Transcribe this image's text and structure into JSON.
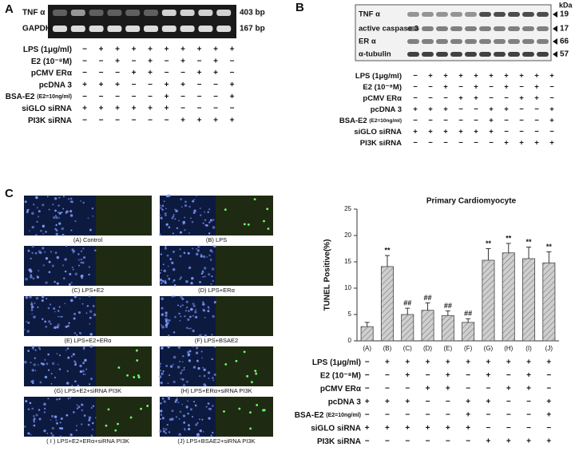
{
  "panel_a": {
    "label": "A",
    "rows": [
      {
        "name": "TNF α",
        "size": "403 bp"
      },
      {
        "name": "GAPDH",
        "size": "167 bp"
      }
    ]
  },
  "panel_b": {
    "label": "B",
    "unit": "kDa",
    "rows": [
      {
        "name": "TNF α",
        "size": 19
      },
      {
        "name": "active caspase 3",
        "size": 17
      },
      {
        "name": "ER α",
        "size": 66
      },
      {
        "name": "α-tubulin",
        "size": 57
      }
    ]
  },
  "treatments": {
    "rows": [
      {
        "name": "LPS (1μg/ml)",
        "signs": [
          "−",
          "+",
          "+",
          "+",
          "+",
          "+",
          "+",
          "+",
          "+",
          "+"
        ]
      },
      {
        "name": "E2 (10⁻⁸M)",
        "signs": [
          "−",
          "−",
          "+",
          "−",
          "+",
          "−",
          "+",
          "−",
          "+",
          "−"
        ]
      },
      {
        "name": "pCMV ERα",
        "signs": [
          "−",
          "−",
          "−",
          "+",
          "+",
          "−",
          "−",
          "+",
          "+",
          "−"
        ]
      },
      {
        "name": "pcDNA 3",
        "signs": [
          "+",
          "+",
          "+",
          "−",
          "−",
          "+",
          "+",
          "−",
          "−",
          "+"
        ]
      },
      {
        "name": "BSA-E2",
        "note": "(E2=10ng/ml)",
        "signs": [
          "−",
          "−",
          "−",
          "−",
          "−",
          "+",
          "−",
          "−",
          "−",
          "+"
        ]
      },
      {
        "name": "siGLO siRNA",
        "signs": [
          "+",
          "+",
          "+",
          "+",
          "+",
          "+",
          "−",
          "−",
          "−",
          "−"
        ]
      },
      {
        "name": "PI3K siRNA",
        "signs": [
          "−",
          "−",
          "−",
          "−",
          "−",
          "−",
          "+",
          "+",
          "+",
          "+"
        ]
      }
    ]
  },
  "panel_c": {
    "label": "C",
    "images": [
      "(A) Control",
      "(B) LPS",
      "(C) LPS+E2",
      "(D) LPS+ERα",
      "(E) LPS+E2+ERα",
      "(F) LPS+BSAE2",
      "(G) LPS+E2+siRNA PI3K",
      "(H) LPS+ERα+siRNA PI3K",
      "( I ) LPS+E2+ERα+siRNA PI3K",
      "(J) LPS+BSAE2+siRNA PI3K"
    ]
  },
  "chart_data": {
    "type": "bar",
    "title": "Primary Cardiomyocyte",
    "y_label": "TUNEL Positive(%)",
    "categories": [
      "(A)",
      "(B)",
      "(C)",
      "(D)",
      "(E)",
      "(F)",
      "(G)",
      "(H)",
      "(I)",
      "(J)"
    ],
    "values": [
      2.7,
      14.1,
      5.0,
      5.8,
      4.8,
      3.5,
      15.3,
      16.7,
      15.6,
      14.8
    ],
    "errors": [
      0.8,
      2.1,
      1.2,
      1.4,
      0.9,
      0.7,
      2.2,
      1.8,
      2.2,
      2.1
    ],
    "annotations": [
      null,
      "**",
      "##",
      "##",
      "##",
      "##",
      "**",
      "**",
      "**",
      "**"
    ],
    "color": "#c8c8c8",
    "ylim": [
      0,
      25
    ],
    "yticks": [
      0,
      5,
      10,
      15,
      20,
      25
    ]
  }
}
